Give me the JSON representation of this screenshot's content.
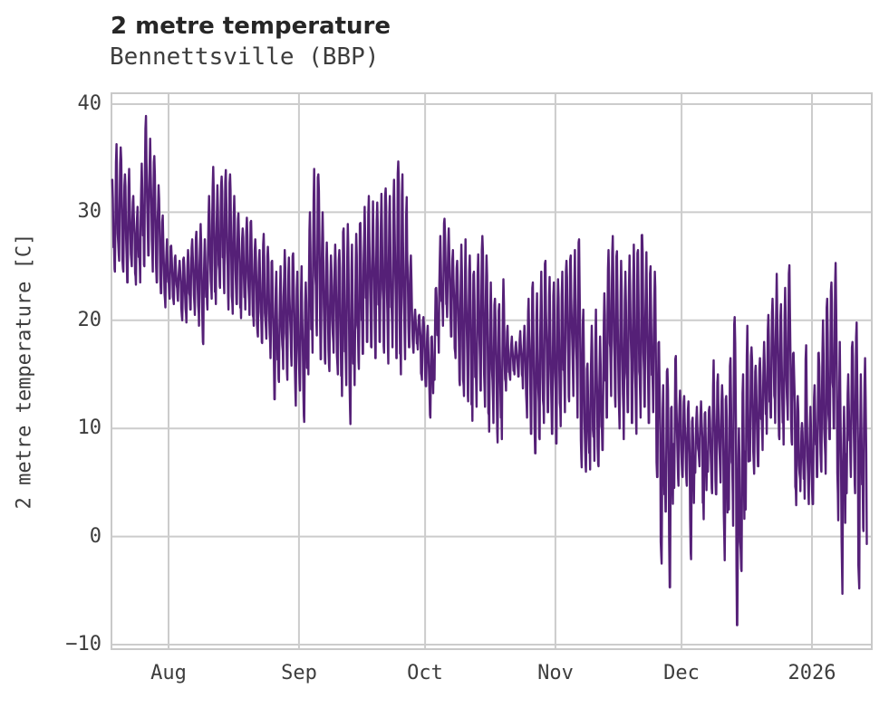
{
  "header": {
    "title": "2 metre temperature",
    "subtitle": "Bennettsville (BBP)"
  },
  "chart_data": {
    "type": "line",
    "title": "2 metre temperature",
    "subtitle": "Bennettsville (BBP)",
    "xlabel": "",
    "ylabel": "2 metre temperature [C]",
    "legend": "none",
    "grid": "on",
    "background": "#ffffff",
    "line_color": "#552077",
    "grid_color": "#cccccc",
    "spine_color": "#c9c9c9",
    "ylim": [
      -10.4,
      41.0
    ],
    "yticks": [
      {
        "value": 40,
        "label": "40"
      },
      {
        "value": 30,
        "label": "30"
      },
      {
        "value": 20,
        "label": "20"
      },
      {
        "value": 10,
        "label": "10"
      },
      {
        "value": 0,
        "label": "0"
      },
      {
        "value": -10,
        "label": "−10"
      }
    ],
    "xticks": [
      {
        "label": "Aug",
        "day": 14
      },
      {
        "label": "Sep",
        "day": 45
      },
      {
        "label": "Oct",
        "day": 75
      },
      {
        "label": "Nov",
        "day": 106
      },
      {
        "label": "Dec",
        "day": 136
      },
      {
        "label": "2026",
        "day": 167
      }
    ],
    "x_start_date": "2025-07-18",
    "x_end_date": "2026-01-15",
    "resolution": "sub-daily line; values below are the estimated daily min/max envelope in °C",
    "daily_min": [
      24,
      24.5,
      25.5,
      24.5,
      23.5,
      25,
      23.3,
      23.5,
      25,
      26,
      24.5,
      23.5,
      22.5,
      21.2,
      22,
      21.5,
      21.8,
      20,
      19.8,
      21,
      20.5,
      19.5,
      17.8,
      21,
      22,
      21.5,
      23,
      22.5,
      21,
      20.6,
      21.5,
      20.2,
      21,
      20.5,
      19.5,
      18.5,
      17.9,
      18.3,
      16.5,
      12.7,
      14.3,
      15.5,
      14.5,
      15.8,
      12.1,
      13.5,
      10.6,
      15,
      17,
      18.6,
      16.4,
      16,
      15.3,
      17,
      15,
      13,
      14,
      10.4,
      14,
      15.5,
      16.9,
      18,
      17.5,
      16.5,
      18,
      17,
      16,
      17.5,
      16.5,
      15,
      16.4,
      17.5,
      17,
      17.3,
      14.5,
      13.9,
      11,
      14.5,
      17,
      19.5,
      20.3,
      18.5,
      16.5,
      14,
      13,
      12.5,
      10.7,
      12,
      13.5,
      12,
      9.7,
      10.5,
      8.7,
      9,
      13.5,
      14.5,
      15,
      14.8,
      13.7,
      11,
      9.5,
      7.7,
      9,
      10.5,
      11.5,
      9.5,
      8.6,
      10.2,
      11.5,
      12.5,
      13,
      11,
      6.4,
      6,
      6.2,
      7,
      6.5,
      8,
      11,
      13,
      12,
      10,
      9,
      11.5,
      10.5,
      9.5,
      11,
      12,
      10.5,
      11.5,
      5.5,
      -2.5,
      2.3,
      -4.7,
      4.5,
      4.7,
      5.5,
      4.7,
      -2.1,
      5.9,
      6.5,
      1.6,
      6,
      4,
      3.9,
      5,
      -2.2,
      2.5,
      1,
      -8.2,
      -3.2,
      2.5,
      7,
      5.8,
      6.5,
      8,
      9.5,
      11,
      10.5,
      9,
      8.5,
      10.8,
      8.5,
      2.9,
      4.2,
      3.5,
      3,
      3,
      5.5,
      6,
      5.8,
      9,
      10,
      1.5,
      -5.3,
      4,
      5.5,
      4,
      -4.8,
      0.5,
      -4.4,
      0.7
    ],
    "daily_max": [
      33,
      36.3,
      36,
      33.5,
      34,
      31.5,
      30.5,
      34.5,
      38.9,
      36.8,
      35.2,
      32.5,
      29.7,
      27.5,
      26.9,
      26,
      25.5,
      25.8,
      26.5,
      27.5,
      28.2,
      28.9,
      27.5,
      31.5,
      34.2,
      32.5,
      33.3,
      33.9,
      33.5,
      31.5,
      29.9,
      28.5,
      29.5,
      29.2,
      27.5,
      26.5,
      28,
      26.8,
      25.5,
      24.5,
      25,
      26.5,
      25.8,
      26.2,
      24.5,
      25,
      23.5,
      30,
      34,
      33.5,
      30,
      27.2,
      26,
      27,
      26.5,
      28.5,
      28.9,
      27,
      28,
      29,
      30.5,
      31.5,
      31,
      30.9,
      31.7,
      32.2,
      31.5,
      33,
      34.7,
      33.5,
      31.4,
      26,
      21,
      20.5,
      20.3,
      19.5,
      18.5,
      23,
      27.8,
      29.4,
      28.5,
      26.5,
      25.5,
      27,
      27.5,
      26,
      24.5,
      26.1,
      27.8,
      26,
      23.5,
      22,
      21.5,
      23.8,
      19.5,
      18.5,
      18,
      19,
      19.5,
      22,
      23.5,
      22.5,
      24.5,
      25.5,
      24,
      23.5,
      23.8,
      24.5,
      25.5,
      26,
      26.5,
      27.5,
      21,
      16,
      19.5,
      21,
      18.5,
      22.5,
      26.5,
      27.8,
      26.4,
      25.5,
      24.5,
      26,
      27,
      26.5,
      27.9,
      26.3,
      25,
      24.5,
      18,
      14,
      15.5,
      12,
      16.7,
      13.5,
      13,
      12.5,
      11,
      12,
      12.5,
      11.5,
      12,
      16.3,
      15,
      14,
      13,
      16.5,
      20.3,
      10,
      15,
      19.5,
      17.5,
      15.8,
      16.5,
      18,
      20.5,
      22,
      24.3,
      21.5,
      23,
      25.1,
      17,
      13,
      10.5,
      17.7,
      12,
      14,
      17,
      20,
      22,
      23.5,
      25.3,
      18,
      12,
      15,
      18,
      19.8,
      15,
      16.5,
      14.9,
      10.5
    ]
  }
}
